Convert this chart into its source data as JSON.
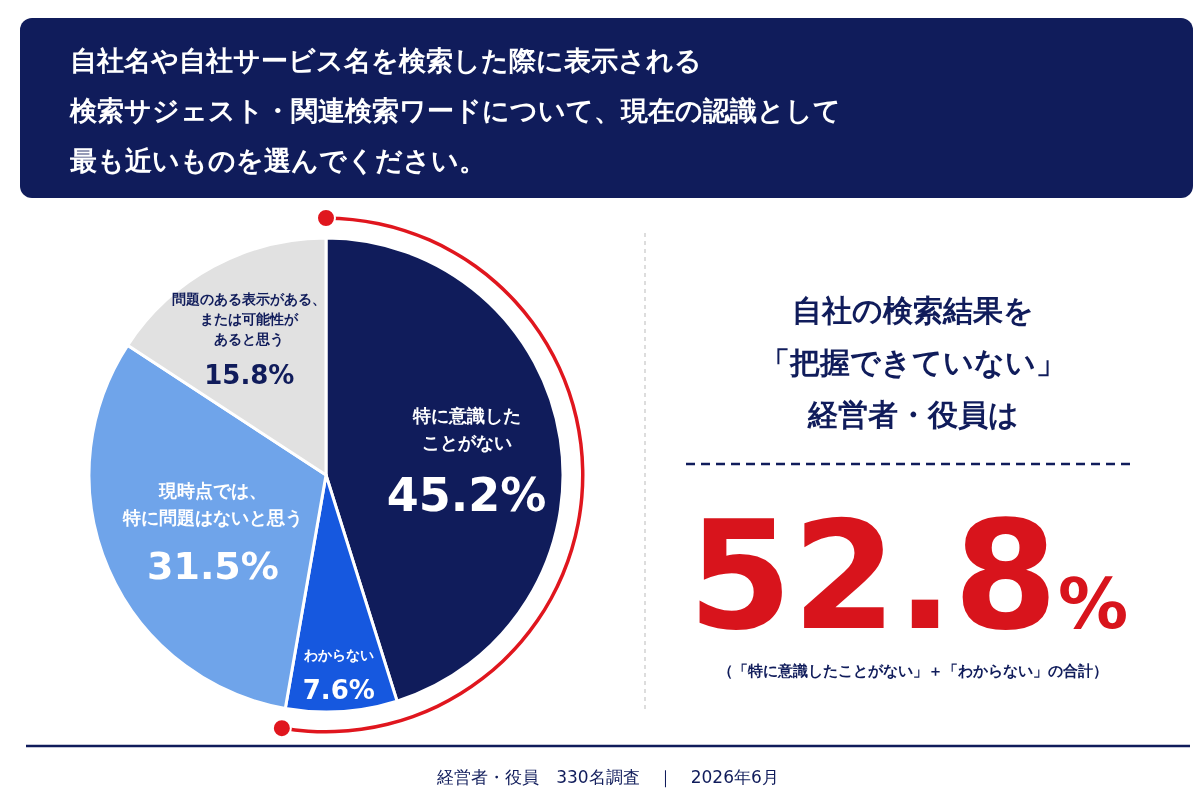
{
  "chart_data": {
    "type": "pie",
    "title": "自社名や自社サービス名を検索した際に表示される検索サジェスト・関連検索ワードについて、現在の認識として最も近いものを選んでください。",
    "categories": [
      "特に意識したことがない",
      "わからない",
      "現時点では、特に問題はないと思う",
      "問題のある表示がある、または可能性があると思う"
    ],
    "values": [
      45.2,
      7.6,
      31.5,
      15.8
    ],
    "value_labels": [
      "45.2%",
      "7.6%",
      "31.5%",
      "15.8%"
    ],
    "colors": [
      "#101c5b",
      "#1658df",
      "#6fa4ea",
      "#e1e1e1"
    ],
    "annotations": [
      "自社の検索結果を",
      "「把握できていない」",
      "経営者・役員は",
      "52.8%",
      "（「特に意識したことがない」＋「わからない」の合計）",
      "経営者・役員　330名調査　｜　2026年6月"
    ]
  }
}
